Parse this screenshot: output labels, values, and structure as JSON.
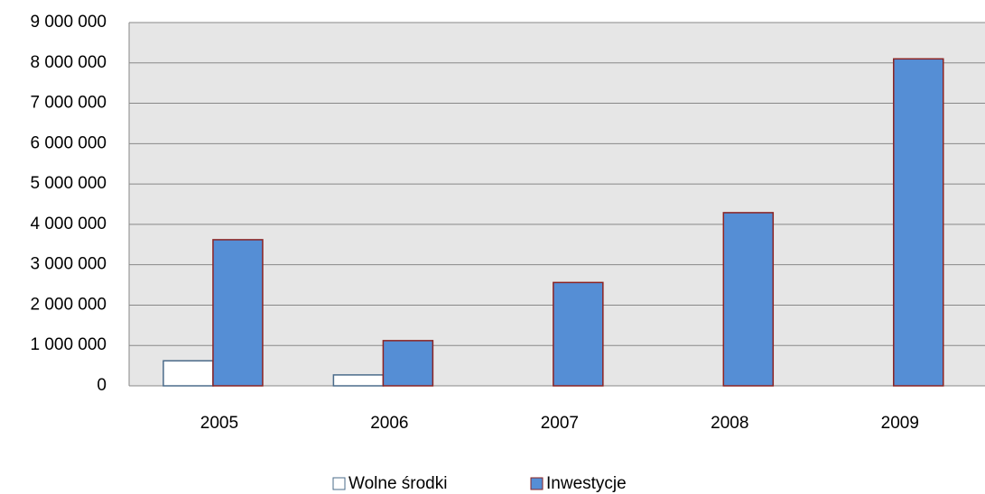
{
  "chart_data": {
    "type": "bar",
    "categories": [
      "2005",
      "2006",
      "2007",
      "2008",
      "2009"
    ],
    "series": [
      {
        "name": "Wolne środki",
        "color": "#ffffff",
        "border": "#4a6b8a",
        "values": [
          620000,
          270000,
          0,
          0,
          0
        ]
      },
      {
        "name": "Inwestycje",
        "color": "#558ed5",
        "border": "#8b2323",
        "values": [
          3620000,
          1120000,
          2560000,
          4290000,
          8100000
        ]
      }
    ],
    "ylim": [
      0,
      9000000
    ],
    "yticks": [
      {
        "value": 0,
        "label": "0"
      },
      {
        "value": 1000000,
        "label": "1 000 000"
      },
      {
        "value": 2000000,
        "label": "2 000 000"
      },
      {
        "value": 3000000,
        "label": "3 000 000"
      },
      {
        "value": 4000000,
        "label": "4 000 000"
      },
      {
        "value": 5000000,
        "label": "5 000 000"
      },
      {
        "value": 6000000,
        "label": "6 000 000"
      },
      {
        "value": 7000000,
        "label": "7 000 000"
      },
      {
        "value": 8000000,
        "label": "8 000 000"
      },
      {
        "value": 9000000,
        "label": "9 000 000"
      }
    ],
    "grid": true,
    "legend": "bottom"
  }
}
